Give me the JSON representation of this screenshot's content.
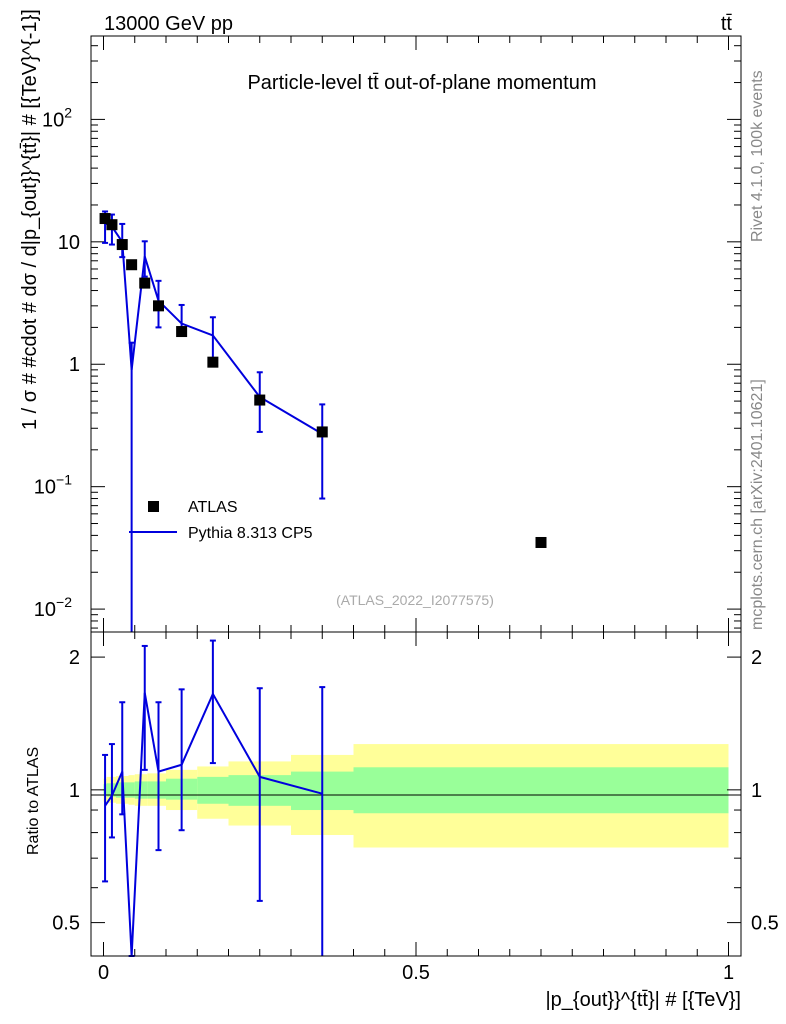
{
  "header": {
    "energy_label": "13000 GeV pp",
    "process_label": "tt̄",
    "side_label_top": "Rivet 4.1.0,  100k events",
    "side_label_bottom": "mcplots.cern.ch [arXiv:2401.10621]"
  },
  "chart_data": {
    "type": "scatter",
    "title": "Particle-level tt̄ out-of-plane momentum",
    "watermark": "(ATLAS_2022_I2077575)",
    "ylabel": "1 / σ # #cdot # dσ / d|p_{out}}^{tt̄}| # [{TeV}^{-1}]",
    "xlabel": "|p_{out}}^{tt̄}| # [{TeV}]",
    "ratio_ylabel": "Ratio to ATLAS",
    "xlim": [
      -0.02,
      1.02
    ],
    "ylim": [
      0.0065,
      480
    ],
    "ratio_ylim": [
      0.42,
      2.28
    ],
    "x_ticks": [
      "0",
      "0.5",
      "1"
    ],
    "y_ticks": [
      "10^-2",
      "10^-1",
      "1",
      "10",
      "10^2"
    ],
    "ratio_ticks": [
      "0.5",
      "1",
      "2"
    ],
    "legend": {
      "data": "ATLAS",
      "mc": "Pythia 8.313 CP5",
      "position": "middle-left"
    },
    "data": {
      "name": "ATLAS",
      "x": [
        0.0025,
        0.0135,
        0.03,
        0.045,
        0.066,
        0.088,
        0.125,
        0.175,
        0.25,
        0.35,
        0.7
      ],
      "y": [
        15.5,
        13.8,
        9.5,
        6.5,
        4.6,
        3.0,
        1.85,
        1.04,
        0.51,
        0.28,
        0.035
      ]
    },
    "mc": {
      "name": "Pythia 8.313 CP5",
      "x": [
        0.0025,
        0.0135,
        0.03,
        0.045,
        0.066,
        0.088,
        0.125,
        0.175,
        0.25,
        0.35
      ],
      "y": [
        14.2,
        13.3,
        10.0,
        0.9,
        7.6,
        3.3,
        2.15,
        1.72,
        0.54,
        0.27
      ],
      "err_lo": [
        4.4,
        3.8,
        2.5,
        0.9,
        2.4,
        1.3,
        0.44,
        0.6,
        0.26,
        0.19
      ],
      "err_hi": [
        3.5,
        3.4,
        4.0,
        0.6,
        2.5,
        1.5,
        0.9,
        0.7,
        0.32,
        0.2
      ]
    },
    "ratio": {
      "x": [
        0.0025,
        0.0135,
        0.03,
        0.045,
        0.066,
        0.088,
        0.125,
        0.175,
        0.25,
        0.35
      ],
      "y": [
        0.92,
        0.97,
        1.1,
        0.08,
        1.66,
        1.1,
        1.14,
        1.65,
        1.07,
        0.98
      ],
      "err_lo": [
        0.3,
        0.19,
        0.22,
        0.08,
        0.55,
        0.37,
        0.33,
        0.5,
        0.51,
        0.98
      ],
      "err_hi": [
        0.28,
        0.3,
        0.48,
        0.3,
        0.46,
        0.48,
        0.55,
        0.53,
        0.63,
        0.73
      ]
    },
    "bands": {
      "edges": [
        0.0,
        0.005,
        0.02,
        0.04,
        0.05,
        0.07,
        0.1,
        0.15,
        0.2,
        0.3,
        0.4,
        1.0
      ],
      "inner": [
        [
          0.97,
          1.03
        ],
        [
          0.965,
          1.035
        ],
        [
          0.96,
          1.04
        ],
        [
          0.96,
          1.04
        ],
        [
          0.955,
          1.045
        ],
        [
          0.955,
          1.045
        ],
        [
          0.95,
          1.06
        ],
        [
          0.93,
          1.07
        ],
        [
          0.92,
          1.08
        ],
        [
          0.9,
          1.1
        ],
        [
          0.885,
          1.125
        ]
      ],
      "outer": [
        [
          0.94,
          1.06
        ],
        [
          0.935,
          1.07
        ],
        [
          0.93,
          1.075
        ],
        [
          0.925,
          1.08
        ],
        [
          0.92,
          1.085
        ],
        [
          0.92,
          1.09
        ],
        [
          0.9,
          1.11
        ],
        [
          0.86,
          1.13
        ],
        [
          0.83,
          1.16
        ],
        [
          0.79,
          1.2
        ],
        [
          0.74,
          1.27
        ]
      ]
    },
    "colors": {
      "mc_line": "#0000dd",
      "inner_band": "#99ff99",
      "outer_band": "#ffff99",
      "data_marker": "#000000"
    }
  }
}
